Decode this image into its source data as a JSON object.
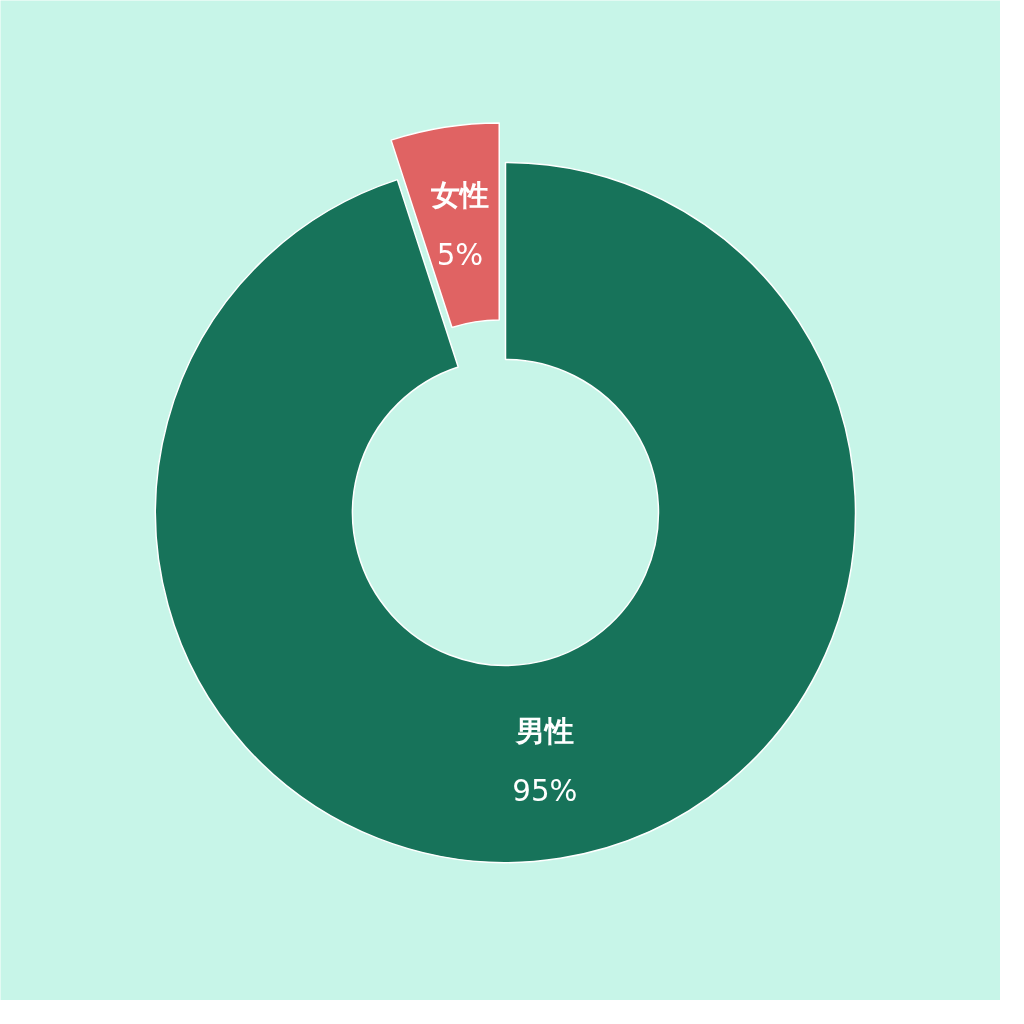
{
  "chart_data": {
    "type": "donut",
    "categories": [
      "男性",
      "女性"
    ],
    "values": [
      95,
      5
    ],
    "colors": [
      "#17735a",
      "#e06363"
    ],
    "value_labels": [
      "95%",
      "5%"
    ]
  }
}
